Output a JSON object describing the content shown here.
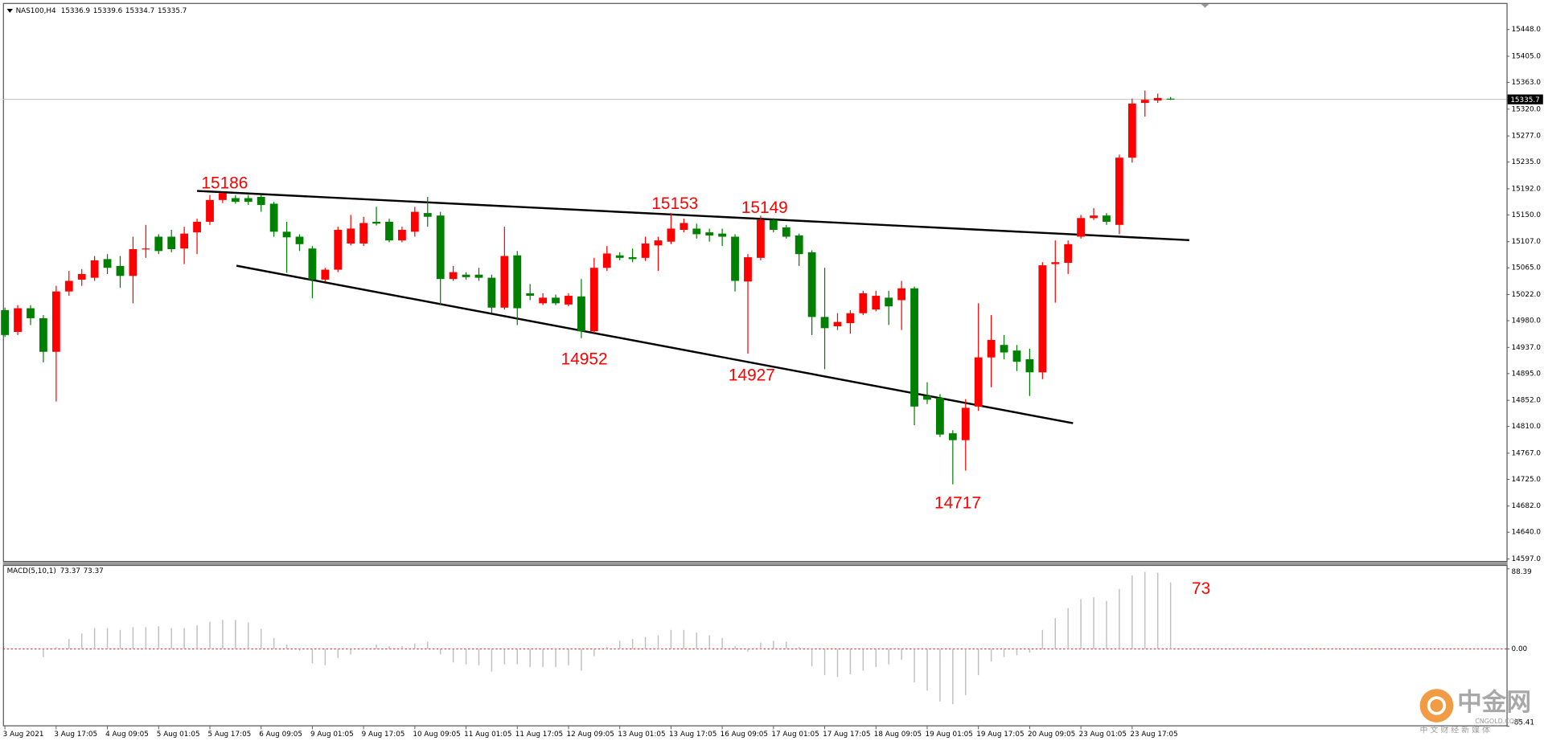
{
  "chart_data": [
    {
      "type": "candlestick",
      "symbol": "NAS100,H4",
      "categories": [
        "3 Aug 2021",
        null,
        null,
        null,
        "3 Aug 17:05",
        null,
        null,
        null,
        "4 Aug 09:05",
        null,
        null,
        null,
        "5 Aug 01:05",
        null,
        null,
        null,
        "5 Aug 17:05",
        null,
        null,
        null,
        "6 Aug 09:05",
        null,
        null,
        null,
        "9 Aug 01:05",
        null,
        null,
        null,
        "9 Aug 17:05",
        null,
        null,
        null,
        "10 Aug 09:05",
        null,
        null,
        null,
        "11 Aug 01:05",
        null,
        null,
        null,
        "11 Aug 17:05",
        null,
        null,
        null,
        "12 Aug 09:05",
        null,
        null,
        null,
        "13 Aug 01:05",
        null,
        null,
        null,
        "13 Aug 17:05",
        null,
        null,
        null,
        "16 Aug 09:05",
        null,
        null,
        null,
        "17 Aug 01:05",
        null,
        null,
        null,
        "17 Aug 17:05",
        null,
        null,
        null,
        "18 Aug 09:05",
        null,
        null,
        null,
        "19 Aug 01:05",
        null,
        null,
        null,
        "19 Aug 17:05",
        null,
        null,
        null,
        "20 Aug 09:05",
        null,
        null,
        null,
        "23 Aug 01:05",
        null,
        null,
        null,
        "23 Aug 17:05",
        null,
        null,
        null
      ],
      "open": [
        14997,
        14962,
        15000,
        14984,
        14930,
        15027,
        15046,
        15049,
        15079,
        15068,
        15052,
        15095,
        15115,
        15115,
        15096,
        15122,
        15139,
        15174,
        15177,
        15177,
        15179,
        15168,
        15123,
        15115,
        15096,
        15046,
        15062,
        15104,
        15104,
        15139,
        15139,
        15109,
        15123,
        15153,
        15149,
        15047,
        15054,
        15054,
        15049,
        15001,
        15085,
        15024,
        15008,
        15017,
        15006,
        15019,
        14963,
        15065,
        15085,
        15082,
        15081,
        15101,
        15107,
        15126,
        15128,
        15122,
        15120,
        15115,
        15043,
        15081,
        15142,
        15130,
        15117,
        15090,
        14986,
        14971,
        14976,
        14992,
        14998,
        15017,
        15013,
        15032,
        14859,
        14856,
        14799,
        14788,
        14842,
        14921,
        14941,
        14932,
        14918,
        14897,
        15071,
        15073,
        15115,
        15145,
        15149,
        15134,
        15242,
        15330,
        15334,
        15336.9
      ],
      "high": [
        15001,
        15005,
        15005,
        14989,
        15036,
        15060,
        15063,
        15084,
        15087,
        15084,
        15115,
        15134,
        15119,
        15126,
        15131,
        15144,
        15182,
        15186,
        15182,
        15182,
        15182,
        15171,
        15139,
        15119,
        15100,
        15065,
        15131,
        15150,
        15147,
        15163,
        15144,
        15131,
        15163,
        15179,
        15155,
        15068,
        15058,
        15065,
        15054,
        15131,
        15092,
        15039,
        15024,
        15022,
        15024,
        15047,
        15081,
        15100,
        15090,
        15096,
        15115,
        15115,
        15153,
        15144,
        15136,
        15128,
        15128,
        15119,
        15087,
        15149,
        15145,
        15134,
        15120,
        15093,
        15065,
        14992,
        14997,
        15028,
        15028,
        15028,
        15044,
        15035,
        14881,
        14862,
        14804,
        14854,
        15008,
        14989,
        14957,
        14941,
        14935,
        15074,
        15109,
        15109,
        15150,
        15161,
        15153,
        15247,
        15337,
        15350,
        15345,
        15339.6
      ],
      "low": [
        14954,
        14957,
        14973,
        14913,
        14850,
        15020,
        15036,
        15044,
        15055,
        15033,
        15008,
        15081,
        15087,
        15090,
        15071,
        15087,
        15134,
        15169,
        15168,
        15166,
        15155,
        15115,
        15057,
        15092,
        15016,
        15043,
        15058,
        15101,
        15100,
        15133,
        15106,
        15106,
        15115,
        15131,
        15005,
        15044,
        15046,
        15044,
        14992,
        14998,
        14973,
        15013,
        15005,
        15005,
        15003,
        14952,
        14960,
        15060,
        15077,
        15074,
        15076,
        15060,
        15103,
        15122,
        15112,
        15107,
        15100,
        15027,
        14927,
        15077,
        15122,
        15112,
        15068,
        14957,
        14902,
        14965,
        14959,
        14989,
        14995,
        14973,
        14965,
        14812,
        14846,
        14793,
        14717,
        14739,
        14835,
        14873,
        14918,
        14899,
        14859,
        14886,
        15009,
        15055,
        15112,
        15142,
        15134,
        15119,
        15234,
        15308,
        15330,
        15334.7
      ],
      "close": [
        14957,
        15000,
        14984,
        14930,
        15027,
        15044,
        15055,
        15077,
        15065,
        15052,
        15095,
        15096,
        15092,
        15095,
        15120,
        15139,
        15174,
        15185,
        15171,
        15171,
        15166,
        15123,
        15114,
        15103,
        15046,
        15062,
        15126,
        15128,
        15137,
        15136,
        15109,
        15126,
        15155,
        15147,
        15047,
        15058,
        15050,
        15049,
        15001,
        15084,
        15000,
        15020,
        15017,
        15008,
        15020,
        14963,
        15065,
        15088,
        15081,
        15079,
        15104,
        15109,
        15128,
        15137,
        15119,
        15117,
        15115,
        15044,
        15082,
        15142,
        15126,
        15115,
        15087,
        14986,
        14968,
        14978,
        14992,
        15024,
        15020,
        15003,
        15032,
        14842,
        14853,
        14797,
        14788,
        14840,
        14921,
        14949,
        14929,
        14914,
        14897,
        15069,
        15074,
        15103,
        15145,
        15149,
        15139,
        15242,
        15329,
        15335,
        15338,
        15335.7
      ],
      "up_color": "#ff0000",
      "down_color": "#008000",
      "ylim": [
        14593.8,
        15490.7
      ],
      "yticks": [
        {
          "value": 15448,
          "label": "15448.0"
        },
        {
          "value": 15405,
          "label": "15405.0"
        },
        {
          "value": 15363,
          "label": "15363.0"
        },
        {
          "value": 15320,
          "label": "15320.0"
        },
        {
          "value": 15277,
          "label": "15277.0"
        },
        {
          "value": 15235,
          "label": "15235.0"
        },
        {
          "value": 15192,
          "label": "15192.0"
        },
        {
          "value": 15150,
          "label": "15150.0"
        },
        {
          "value": 15107,
          "label": "15107.0"
        },
        {
          "value": 15065,
          "label": "15065.0"
        },
        {
          "value": 15022,
          "label": "15022.0"
        },
        {
          "value": 14980,
          "label": "14980.0"
        },
        {
          "value": 14937,
          "label": "14937.0"
        },
        {
          "value": 14895,
          "label": "14895.0"
        },
        {
          "value": 14852,
          "label": "14852.0"
        },
        {
          "value": 14810,
          "label": "14810.0"
        },
        {
          "value": 14767,
          "label": "14767.0"
        },
        {
          "value": 14725,
          "label": "14725.0"
        },
        {
          "value": 14682,
          "label": "14682.0"
        },
        {
          "value": 14640,
          "label": "14640.0"
        },
        {
          "value": 14597,
          "label": "14597.0"
        }
      ],
      "annotations": [
        15186,
        15153,
        15149,
        14952,
        14927,
        14717
      ]
    },
    {
      "type": "bar",
      "title": "MACD(5,10,1)",
      "color": "#c0c0c0",
      "zero_line_color": "#ff0000",
      "values": [
        null,
        null,
        null,
        -9,
        2,
        11,
        17,
        23,
        23,
        21,
        24,
        24,
        25,
        23,
        23,
        26,
        30,
        32,
        32,
        29,
        22,
        12,
        5,
        -2,
        -16,
        -18,
        -10,
        -6,
        1,
        5,
        3,
        3,
        6,
        8,
        -6,
        -15,
        -17,
        -18,
        -25,
        -17,
        -17,
        -20,
        -20,
        -20,
        -18,
        -24,
        -8,
        2,
        9,
        11,
        13,
        15,
        21,
        21,
        18,
        15,
        12,
        3,
        -3,
        7,
        9,
        8,
        2,
        -19,
        -29,
        -31,
        -28,
        -24,
        -20,
        -17,
        -12,
        -37,
        -46,
        -58,
        -61,
        -51,
        -29,
        -14,
        -9,
        -7,
        -4,
        21,
        34,
        45,
        55,
        57,
        53,
        66,
        81,
        85,
        84,
        73.37
      ],
      "signal_value": 73.37,
      "ylim": [
        -85.41,
        88.39
      ],
      "yticks": [
        88.39,
        {
          "value": 0,
          "label": "0.00"
        },
        -85.41
      ],
      "annotations": [
        73
      ]
    }
  ],
  "watermark": {
    "brand": "中金网",
    "site": "CNGOLD.COM",
    "tagline": "中 文 财 经 新 媒 体"
  }
}
